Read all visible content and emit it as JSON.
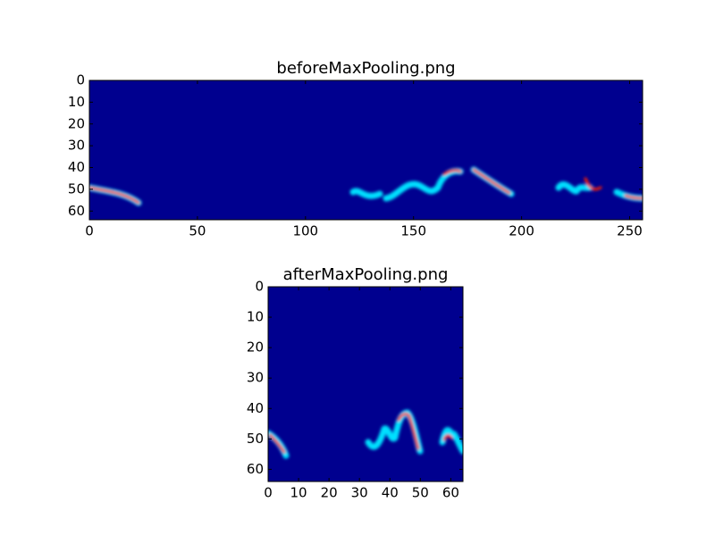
{
  "chart_data": [
    {
      "type": "image",
      "title": "beforeMaxPooling.png",
      "cmap": "jet",
      "xlim": [
        0,
        256
      ],
      "ylim": [
        64,
        0
      ],
      "xticks": [
        0,
        50,
        100,
        150,
        200,
        250
      ],
      "yticks": [
        0,
        10,
        20,
        30,
        40,
        50,
        60
      ]
    },
    {
      "type": "image",
      "title": "afterMaxPooling.png",
      "cmap": "jet",
      "xlim": [
        0,
        64
      ],
      "ylim": [
        64,
        0
      ],
      "xticks": [
        0,
        10,
        20,
        30,
        40,
        50,
        60
      ],
      "yticks": [
        0,
        10,
        20,
        30,
        40,
        50,
        60
      ]
    }
  ]
}
